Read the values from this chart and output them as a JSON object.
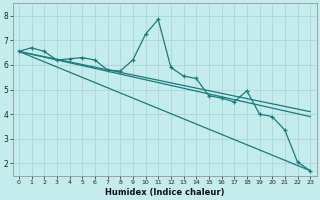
{
  "xlabel": "Humidex (Indice chaleur)",
  "bg_color": "#c5eced",
  "grid_color": "#aed6d8",
  "line_color": "#1a7b7b",
  "xlim": [
    -0.5,
    23.5
  ],
  "ylim": [
    1.5,
    8.5
  ],
  "x": [
    0,
    1,
    2,
    3,
    4,
    5,
    6,
    7,
    8,
    9,
    10,
    11,
    12,
    13,
    14,
    15,
    16,
    17,
    18,
    19,
    20,
    21,
    22,
    23
  ],
  "line1": [
    6.55,
    6.7,
    6.55,
    6.2,
    6.25,
    6.3,
    6.2,
    5.8,
    5.75,
    6.2,
    7.25,
    7.85,
    5.9,
    5.55,
    5.45,
    4.75,
    4.65,
    4.5,
    4.95,
    4.0,
    3.9,
    3.35,
    2.05,
    1.7
  ],
  "line2_x": [
    0,
    23
  ],
  "line2_y": [
    6.55,
    3.9
  ],
  "line3_x": [
    0,
    23
  ],
  "line3_y": [
    6.55,
    4.1
  ],
  "line4_x": [
    0,
    23
  ],
  "line4_y": [
    6.55,
    1.7
  ],
  "yticks": [
    2,
    3,
    4,
    5,
    6,
    7,
    8
  ],
  "xticks": [
    0,
    1,
    2,
    3,
    4,
    5,
    6,
    7,
    8,
    9,
    10,
    11,
    12,
    13,
    14,
    15,
    16,
    17,
    18,
    19,
    20,
    21,
    22,
    23
  ]
}
